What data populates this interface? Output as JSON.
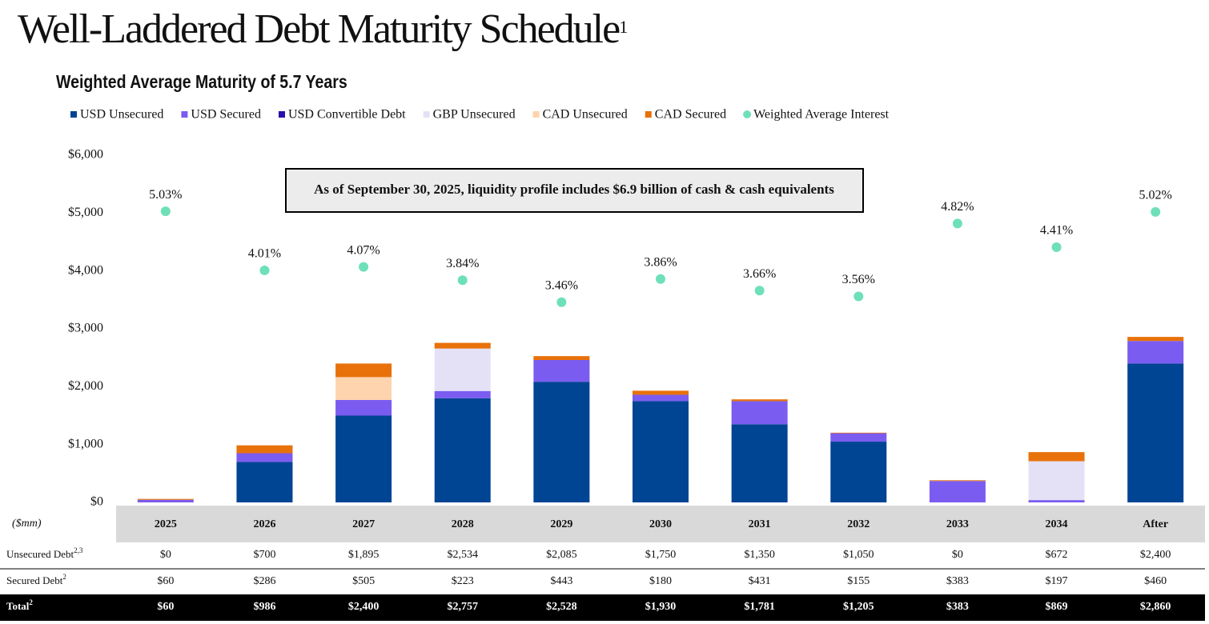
{
  "chart_data": {
    "type": "bar",
    "stacked": true,
    "title": "Well-Laddered Debt Maturity Schedule",
    "title_note": "1",
    "subtitle": "Weighted Average Maturity of 5.7 Years",
    "annotation": "As of September 30, 2025, liquidity profile includes $6.9 billion of cash & cash equivalents",
    "categories": [
      "2025",
      "2026",
      "2027",
      "2028",
      "2029",
      "2030",
      "2031",
      "2032",
      "2033",
      "2034",
      "After"
    ],
    "series": [
      {
        "name": "USD Unsecured",
        "color": "#004494",
        "values": [
          0,
          700,
          1500,
          1800,
          2085,
          1750,
          1350,
          1050,
          0,
          0,
          2400
        ]
      },
      {
        "name": "USD Secured",
        "color": "#7b5cf0",
        "values": [
          45,
          150,
          270,
          125,
          376,
          110,
          400,
          145,
          370,
          40,
          390
        ]
      },
      {
        "name": "USD Convertible Debt",
        "color": "#2a0fa8",
        "values": [
          0,
          0,
          0,
          0,
          0,
          0,
          0,
          0,
          0,
          0,
          0
        ]
      },
      {
        "name": "GBP Unsecured",
        "color": "#e4e1f7",
        "values": [
          0,
          0,
          0,
          734,
          0,
          0,
          0,
          0,
          0,
          672,
          0
        ]
      },
      {
        "name": "CAD Unsecured",
        "color": "#fdd4ae",
        "values": [
          0,
          0,
          395,
          0,
          0,
          0,
          0,
          0,
          0,
          0,
          0
        ]
      },
      {
        "name": "CAD Secured",
        "color": "#e8710a",
        "values": [
          15,
          136,
          235,
          98,
          67,
          70,
          31,
          10,
          13,
          157,
          70
        ]
      },
      {
        "name": "Weighted Average Interest",
        "color": "#6ee0b8",
        "type": "scatter",
        "axis": "y2",
        "values": [
          5.03,
          4.01,
          4.07,
          3.84,
          3.46,
          3.86,
          3.66,
          3.56,
          4.82,
          4.41,
          5.02
        ],
        "value_labels": [
          "5.03%",
          "4.01%",
          "4.07%",
          "3.84%",
          "3.46%",
          "3.86%",
          "3.66%",
          "3.56%",
          "4.82%",
          "4.41%",
          "5.02%"
        ]
      }
    ],
    "ylim": [
      0,
      6000
    ],
    "yticks": [
      {
        "value": 0,
        "label": "$0"
      },
      {
        "value": 1000,
        "label": "$1,000"
      },
      {
        "value": 2000,
        "label": "$2,000"
      },
      {
        "value": 3000,
        "label": "$3,000"
      },
      {
        "value": 4000,
        "label": "$4,000"
      },
      {
        "value": 5000,
        "label": "$5,000"
      },
      {
        "value": 6000,
        "label": "$6,000"
      }
    ],
    "y2lim": [
      0,
      6
    ],
    "grid": false
  },
  "table": {
    "header": "($mm)",
    "rows": [
      {
        "label": "Unsecured Debt",
        "note": "2,3",
        "cells": [
          "$0",
          "$700",
          "$1,895",
          "$2,534",
          "$2,085",
          "$1,750",
          "$1,350",
          "$1,050",
          "$0",
          "$672",
          "$2,400"
        ]
      },
      {
        "label": "Secured Debt",
        "note": "2",
        "cells": [
          "$60",
          "$286",
          "$505",
          "$223",
          "$443",
          "$180",
          "$431",
          "$155",
          "$383",
          "$197",
          "$460"
        ]
      },
      {
        "label": "Total",
        "note": "2",
        "cells": [
          "$60",
          "$986",
          "$2,400",
          "$2,757",
          "$2,528",
          "$1,930",
          "$1,781",
          "$1,205",
          "$383",
          "$869",
          "$2,860"
        ]
      }
    ]
  }
}
